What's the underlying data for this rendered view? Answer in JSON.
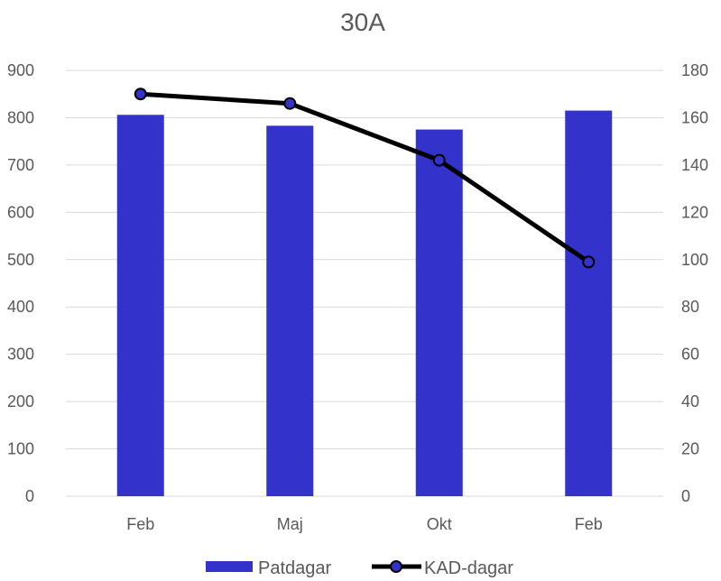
{
  "chart_data": {
    "type": "bar+line",
    "title": "30A",
    "categories": [
      "Feb",
      "Maj",
      "Okt",
      "Feb"
    ],
    "series": [
      {
        "name": "Patdagar",
        "type": "bar",
        "axis": "left",
        "values": [
          806,
          783,
          775,
          815
        ]
      },
      {
        "name": "KAD-dagar",
        "type": "line",
        "axis": "right",
        "values": [
          170,
          166,
          142,
          99
        ]
      }
    ],
    "y_left": {
      "min": 0,
      "max": 900,
      "step": 100,
      "ticks": [
        "0",
        "100",
        "200",
        "300",
        "400",
        "500",
        "600",
        "700",
        "800",
        "900"
      ]
    },
    "y_right": {
      "min": 0,
      "max": 180,
      "step": 20,
      "ticks": [
        "0",
        "20",
        "40",
        "60",
        "80",
        "100",
        "120",
        "140",
        "160",
        "180"
      ]
    },
    "grid": true,
    "legend_position": "bottom",
    "colors": {
      "bar": "#3333CC",
      "line": "#000000",
      "marker_fill": "#3333CC",
      "grid": "#D9D9D9",
      "text": "#595959"
    }
  }
}
